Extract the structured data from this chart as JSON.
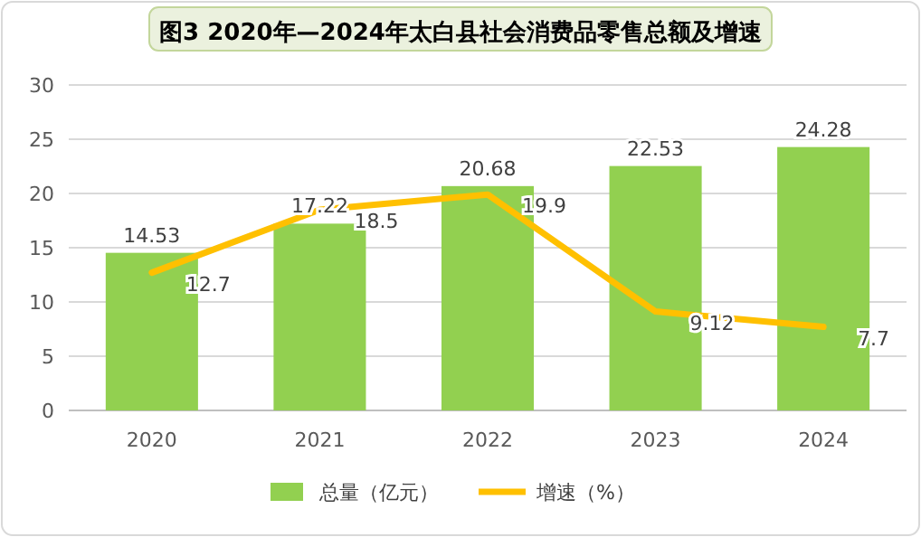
{
  "chart_data": {
    "type": "bar",
    "title": "图3 2020年—2024年太白县社会消费品零售总额及增速",
    "categories": [
      "2020",
      "2021",
      "2022",
      "2023",
      "2024"
    ],
    "series": [
      {
        "name": "总量（亿元）",
        "color": "#92d050",
        "values": [
          14.53,
          17.22,
          20.68,
          22.53,
          24.28
        ]
      },
      {
        "name": "增速（%）",
        "type": "line",
        "color": "#ffc000",
        "values": [
          12.7,
          18.5,
          19.9,
          9.12,
          7.7
        ]
      }
    ],
    "ylim": [
      0,
      30
    ],
    "yticks": [
      0,
      5,
      10,
      15,
      20,
      25,
      30
    ],
    "grid": "y",
    "legend": "bottom",
    "data_labels": true,
    "marker": "none"
  }
}
